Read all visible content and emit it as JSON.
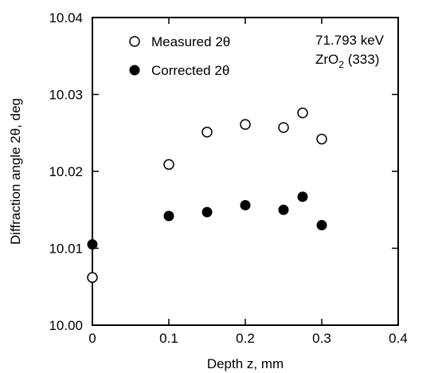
{
  "chart_data": {
    "type": "scatter",
    "xlabel": "Depth z, mm",
    "ylabel": "Diffraction angle 2θ, deg",
    "xlim": [
      0,
      0.4
    ],
    "ylim": [
      10.0,
      10.04
    ],
    "x_ticks": [
      "0",
      "0.1",
      "0.2",
      "0.3",
      "0.4"
    ],
    "y_ticks": [
      "10.00",
      "10.01",
      "10.02",
      "10.03",
      "10.04"
    ],
    "x_tick_values": [
      0,
      0.1,
      0.2,
      0.3,
      0.4
    ],
    "y_tick_values": [
      10.0,
      10.01,
      10.02,
      10.03,
      10.04
    ],
    "grid": false,
    "legend_position": "top-left",
    "series": [
      {
        "name": "Measured 2θ",
        "marker": "open-circle",
        "points": [
          {
            "x": 0,
            "y": 10.0062
          },
          {
            "x": 0.1,
            "y": 10.0209
          },
          {
            "x": 0.15,
            "y": 10.0251
          },
          {
            "x": 0.2,
            "y": 10.0261
          },
          {
            "x": 0.25,
            "y": 10.0257
          },
          {
            "x": 0.275,
            "y": 10.0276
          },
          {
            "x": 0.3,
            "y": 10.0242
          }
        ]
      },
      {
        "name": "Corrected 2θ",
        "marker": "filled-circle",
        "points": [
          {
            "x": 0,
            "y": 10.0105
          },
          {
            "x": 0.1,
            "y": 10.0142
          },
          {
            "x": 0.15,
            "y": 10.0147
          },
          {
            "x": 0.2,
            "y": 10.0156
          },
          {
            "x": 0.25,
            "y": 10.015
          },
          {
            "x": 0.275,
            "y": 10.0167
          },
          {
            "x": 0.3,
            "y": 10.013
          }
        ]
      }
    ],
    "annotations": {
      "energy": "71.793 keV",
      "reflection_main": "ZrO",
      "reflection_sub": "2",
      "reflection_hkl": " (333)"
    }
  }
}
